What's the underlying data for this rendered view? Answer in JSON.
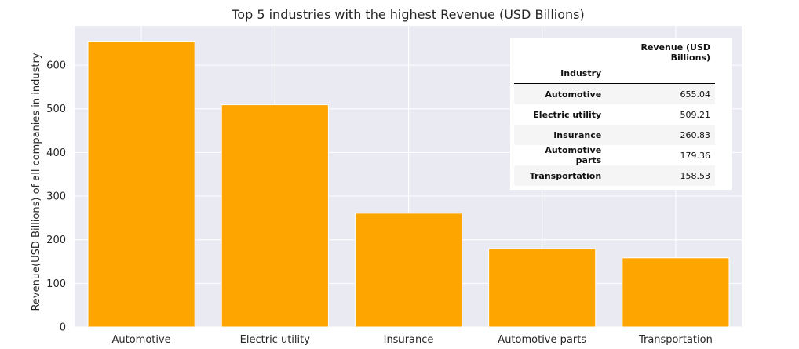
{
  "chart_data": {
    "type": "bar",
    "title": "Top 5 industries with the highest Revenue (USD Billions)",
    "xlabel": "",
    "ylabel": "Revenue(USD Billions) of all companies in industry",
    "categories": [
      "Automotive",
      "Electric utility",
      "Insurance",
      "Automotive parts",
      "Transportation"
    ],
    "values": [
      655.04,
      509.21,
      260.83,
      179.36,
      158.53
    ],
    "ylim": [
      0,
      690
    ],
    "yticks": [
      0,
      100,
      200,
      300,
      400,
      500,
      600
    ],
    "grid": true,
    "bar_color": "#ffa500",
    "background_color": "#eaeaf2"
  },
  "table": {
    "column_header": "Revenue (USD Billions)",
    "index_header": "Industry",
    "rows": [
      {
        "industry": "Automotive",
        "value": "655.04"
      },
      {
        "industry": "Electric utility",
        "value": "509.21"
      },
      {
        "industry": "Insurance",
        "value": "260.83"
      },
      {
        "industry": "Automotive parts",
        "value": "179.36"
      },
      {
        "industry": "Transportation",
        "value": "158.53"
      }
    ]
  }
}
